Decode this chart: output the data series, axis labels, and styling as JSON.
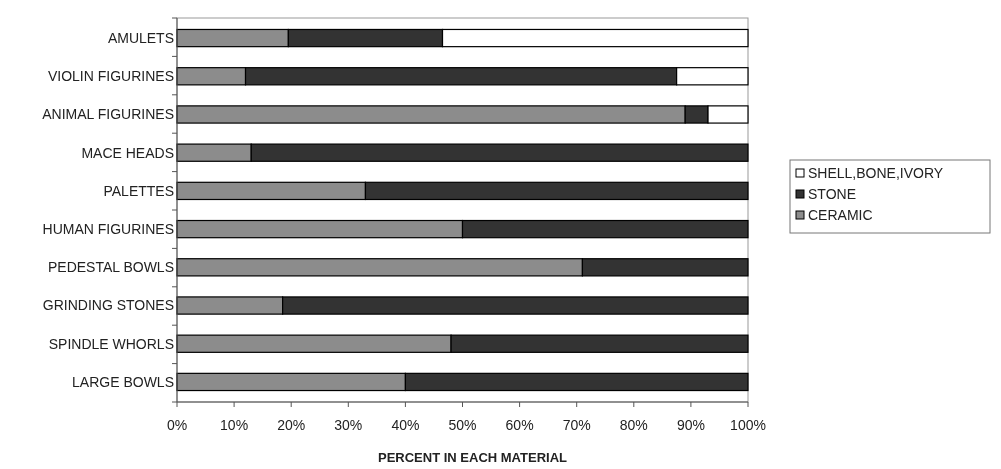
{
  "chart_data": {
    "type": "bar",
    "orientation": "horizontal",
    "stacked": true,
    "xlabel": "PERCENT IN EACH MATERIAL",
    "categories": [
      "AMULETS",
      "VIOLIN FIGURINES",
      "ANIMAL FIGURINES",
      "MACE HEADS",
      "PALETTES",
      "HUMAN FIGURINES",
      "PEDESTAL BOWLS",
      "GRINDING STONES",
      "SPINDLE WHORLS",
      "LARGE BOWLS"
    ],
    "series": [
      {
        "name": "CERAMIC",
        "color": "#8c8c8c",
        "values": [
          19.5,
          12,
          89,
          13,
          33,
          50,
          71,
          18.5,
          48,
          40
        ]
      },
      {
        "name": "STONE",
        "color": "#333333",
        "values": [
          27,
          75.5,
          4,
          87,
          67,
          50,
          29,
          81.5,
          52,
          60
        ]
      },
      {
        "name": "SHELL,BONE,IVORY",
        "color": "#ffffff",
        "values": [
          53.5,
          12.5,
          7,
          0,
          0,
          0,
          0,
          0,
          0,
          0
        ]
      }
    ],
    "xlim": [
      0,
      100
    ],
    "xticks": [
      {
        "value": 0,
        "label": "0%"
      },
      {
        "value": 10,
        "label": "10%"
      },
      {
        "value": 20,
        "label": "20%"
      },
      {
        "value": 30,
        "label": "30%"
      },
      {
        "value": 40,
        "label": "40%"
      },
      {
        "value": 50,
        "label": "50%"
      },
      {
        "value": 60,
        "label": "60%"
      },
      {
        "value": 70,
        "label": "70%"
      },
      {
        "value": 80,
        "label": "80%"
      },
      {
        "value": 90,
        "label": "90%"
      },
      {
        "value": 100,
        "label": "100%"
      }
    ],
    "grid": false,
    "legend": "right"
  }
}
